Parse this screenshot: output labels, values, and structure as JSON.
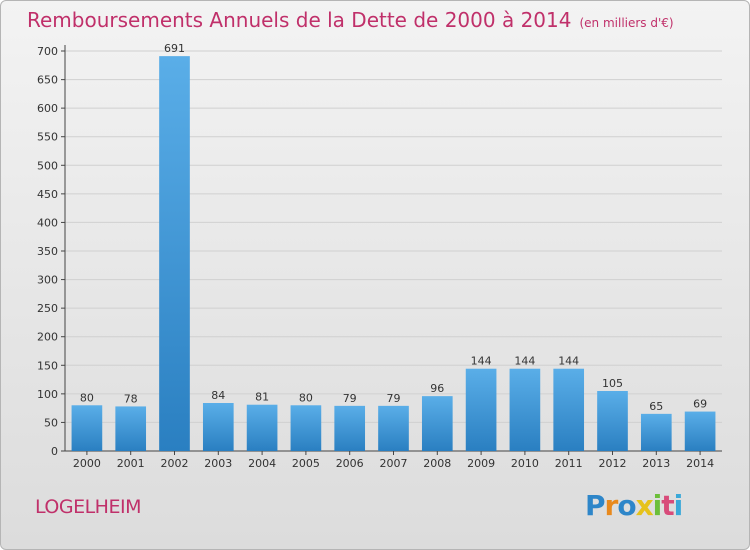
{
  "header": {
    "title": "Remboursements Annuels de la Dette de 2000 à 2014",
    "subtitle": "(en milliers d'€)"
  },
  "footer": {
    "town": "LOGELHEIM",
    "logo": {
      "name": "proxiti-logo",
      "letters": [
        "P",
        "r",
        "o",
        "x",
        "i",
        "t",
        "i"
      ]
    }
  },
  "chart_data": {
    "type": "bar",
    "title": "Remboursements Annuels de la Dette de 2000 à 2014",
    "subtitle": "(en milliers d'€)",
    "xlabel": "",
    "ylabel": "",
    "categories": [
      "2000",
      "2001",
      "2002",
      "2003",
      "2004",
      "2005",
      "2006",
      "2007",
      "2008",
      "2009",
      "2010",
      "2011",
      "2012",
      "2013",
      "2014"
    ],
    "values": [
      80,
      78,
      691,
      84,
      81,
      80,
      79,
      79,
      96,
      144,
      144,
      144,
      105,
      65,
      69
    ],
    "ylim": [
      0,
      700
    ],
    "yticks": [
      0,
      50,
      100,
      150,
      200,
      250,
      300,
      350,
      400,
      450,
      500,
      550,
      600,
      650,
      700
    ],
    "grid": true,
    "legend": "none",
    "colors": {
      "bar_top": "#5aaee8",
      "bar_bottom": "#2a7fc1",
      "grid": "#d0d0d0",
      "title": "#c0306a"
    }
  }
}
